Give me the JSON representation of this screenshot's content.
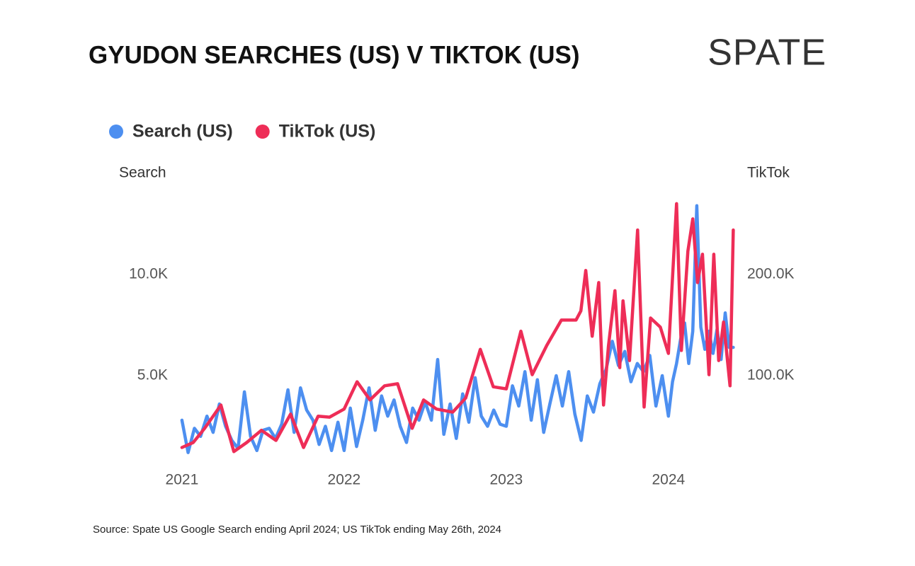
{
  "chart_data": {
    "type": "line",
    "title": "GYUDON SEARCHES (US) V TIKTOK (US)",
    "brand": "SPATE",
    "source": "Source: Spate US Google Search ending April 2024; US TikTok ending May 26th, 2024",
    "y_label": "Search",
    "y2_label": "TikTok",
    "xlim": [
      2020.9,
      2024.42
    ],
    "xticks": [
      2021,
      2022,
      2023,
      2024
    ],
    "ylim": [
      0,
      14000
    ],
    "yticks": [
      {
        "value": 5000,
        "label": "5.0K"
      },
      {
        "value": 10000,
        "label": "10.0K"
      }
    ],
    "y2lim": [
      0,
      280000
    ],
    "y2ticks": [
      {
        "value": 100000,
        "label": "100.0K"
      },
      {
        "value": 200000,
        "label": "200.0K"
      }
    ],
    "grid": false,
    "legend": "top-left",
    "series": [
      {
        "name": "Search (US)",
        "color": "#4d8ff0",
        "axis": "y",
        "x": [
          2021.0,
          2021.038,
          2021.077,
          2021.115,
          2021.154,
          2021.192,
          2021.231,
          2021.269,
          2021.308,
          2021.346,
          2021.385,
          2021.423,
          2021.462,
          2021.5,
          2021.538,
          2021.577,
          2021.615,
          2021.654,
          2021.692,
          2021.731,
          2021.769,
          2021.808,
          2021.846,
          2021.885,
          2021.923,
          2021.962,
          2022.0,
          2022.038,
          2022.077,
          2022.115,
          2022.154,
          2022.192,
          2022.231,
          2022.269,
          2022.308,
          2022.346,
          2022.385,
          2022.423,
          2022.462,
          2022.5,
          2022.538,
          2022.577,
          2022.615,
          2022.654,
          2022.692,
          2022.731,
          2022.769,
          2022.808,
          2022.846,
          2022.885,
          2022.923,
          2022.962,
          2023.0,
          2023.038,
          2023.077,
          2023.115,
          2023.154,
          2023.192,
          2023.231,
          2023.269,
          2023.308,
          2023.346,
          2023.385,
          2023.423,
          2023.462,
          2023.5,
          2023.538,
          2023.577,
          2023.615,
          2023.654,
          2023.692,
          2023.731,
          2023.769,
          2023.808,
          2023.846,
          2023.885,
          2023.923,
          2023.962,
          2024.0,
          2024.025,
          2024.05,
          2024.075,
          2024.1,
          2024.125,
          2024.15,
          2024.175,
          2024.2,
          2024.225,
          2024.25,
          2024.275,
          2024.3,
          2024.325,
          2024.35,
          2024.375,
          2024.4
        ],
        "values": [
          2800,
          1200,
          2400,
          2000,
          3000,
          2200,
          3600,
          2500,
          1800,
          1400,
          4200,
          2000,
          1300,
          2300,
          2400,
          1900,
          2600,
          4300,
          2200,
          4400,
          3300,
          2800,
          1600,
          2500,
          1300,
          2700,
          1300,
          3400,
          1500,
          2800,
          4400,
          2300,
          4000,
          3000,
          3800,
          2500,
          1700,
          3400,
          2800,
          3700,
          2800,
          5800,
          2100,
          3600,
          1900,
          4100,
          2700,
          4900,
          3000,
          2500,
          3300,
          2600,
          2500,
          4500,
          3500,
          5200,
          2800,
          4800,
          2200,
          3600,
          5000,
          3500,
          5200,
          3100,
          1800,
          4000,
          3200,
          4600,
          5300,
          6700,
          5500,
          6200,
          4700,
          5600,
          5200,
          6000,
          3500,
          5000,
          3000,
          4700,
          5600,
          6800,
          7600,
          5600,
          7200,
          13400,
          7400,
          6300,
          7200,
          6100,
          7300,
          5800,
          8100,
          6400,
          6400
        ]
      },
      {
        "name": "TikTok (US)",
        "color": "#ee2d57",
        "axis": "y2",
        "x": [
          2021.0,
          2021.07,
          2021.14,
          2021.24,
          2021.32,
          2021.4,
          2021.49,
          2021.58,
          2021.67,
          2021.75,
          2021.84,
          2021.91,
          2022.0,
          2022.08,
          2022.16,
          2022.25,
          2022.33,
          2022.42,
          2022.49,
          2022.57,
          2022.67,
          2022.75,
          2022.84,
          2022.92,
          2023.0,
          2023.09,
          2023.16,
          2023.25,
          2023.34,
          2023.43,
          2023.46,
          2023.49,
          2023.53,
          2023.57,
          2023.6,
          2023.63,
          2023.67,
          2023.7,
          2023.72,
          2023.76,
          2023.81,
          2023.85,
          2023.89,
          2023.95,
          2024.0,
          2024.05,
          2024.08,
          2024.12,
          2024.15,
          2024.18,
          2024.21,
          2024.25,
          2024.28,
          2024.31,
          2024.34,
          2024.38,
          2024.4
        ],
        "values": [
          29000,
          34000,
          48000,
          71000,
          25000,
          34000,
          46000,
          36000,
          62000,
          29000,
          60000,
          59000,
          67000,
          94000,
          76000,
          90000,
          92000,
          48000,
          76000,
          67000,
          64000,
          78000,
          126000,
          89000,
          87000,
          144000,
          101000,
          130000,
          155000,
          155000,
          164000,
          204000,
          139000,
          192000,
          71000,
          129000,
          184000,
          108000,
          174000,
          115000,
          244000,
          69000,
          157000,
          148000,
          122000,
          270000,
          125000,
          223000,
          255000,
          192000,
          220000,
          101000,
          220000,
          115000,
          153000,
          90000,
          244000
        ]
      }
    ]
  }
}
